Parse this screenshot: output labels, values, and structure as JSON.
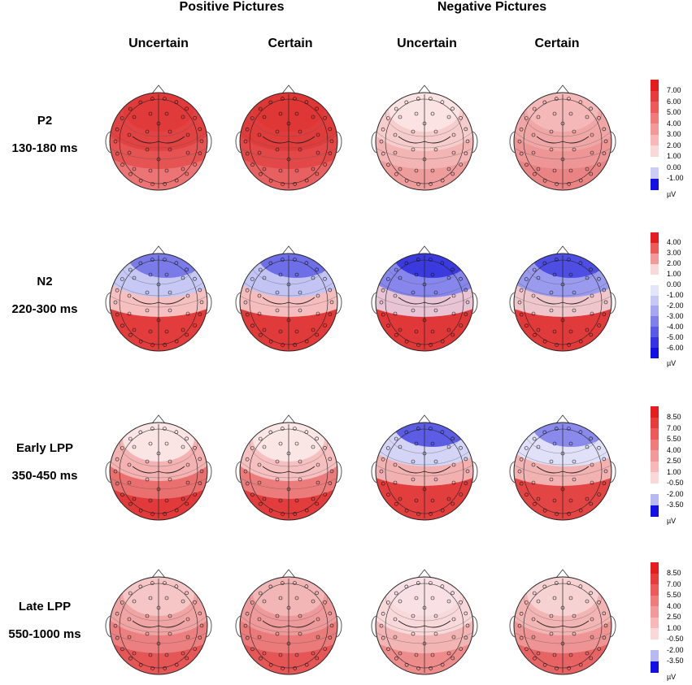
{
  "headers": {
    "groups": [
      "Positive Pictures",
      "Negative Pictures"
    ],
    "conditions": [
      "Uncertain",
      "Certain",
      "Uncertain",
      "Certain"
    ]
  },
  "rows": [
    {
      "name": "P2",
      "window": "130-180 ms",
      "maps": [
        {
          "condition": "Positive Uncertain",
          "bands": [
            "#e03a3a",
            "#e24242",
            "#e65353",
            "#ec7474"
          ],
          "front_negative": false
        },
        {
          "condition": "Positive Certain",
          "bands": [
            "#df3636",
            "#e13c3c",
            "#e34848",
            "#e86060"
          ],
          "front_negative": false
        },
        {
          "condition": "Negative Uncertain",
          "bands": [
            "#fbe3e3",
            "#f7cccc",
            "#f3b4b4",
            "#ee9c9c"
          ],
          "front_negative": false
        },
        {
          "condition": "Negative Certain",
          "bands": [
            "#f4b8b8",
            "#f1a6a6",
            "#ee9696",
            "#ea8484"
          ],
          "front_negative": false
        }
      ],
      "colorbar": {
        "ticks": [
          "7.00",
          "6.00",
          "5.00",
          "4.00",
          "3.00",
          "2.00",
          "1.00",
          "0.00",
          "-1.00"
        ],
        "colors": [
          "#e71c1c",
          "#ea3b3b",
          "#ee5a5a",
          "#f17a7a",
          "#f49999",
          "#f8b8b8",
          "#fbd8d8",
          "#ffffff",
          "#ccccf6",
          "#1111e6"
        ],
        "unit": "µV"
      }
    },
    {
      "name": "N2",
      "window": "220-300 ms",
      "maps": [
        {
          "condition": "Positive Uncertain",
          "bands": [
            "#7a7ae8",
            "#c8c8f4",
            "#f6c0c0",
            "#e23c3c"
          ],
          "front_negative": true
        },
        {
          "condition": "Positive Certain",
          "bands": [
            "#6e6ee8",
            "#c4c4f4",
            "#f5bdbd",
            "#e13a3a"
          ],
          "front_negative": true
        },
        {
          "condition": "Negative Uncertain",
          "bands": [
            "#3a3ade",
            "#8686ec",
            "#e8c4d4",
            "#e03838"
          ],
          "front_negative": true
        },
        {
          "condition": "Negative Certain",
          "bands": [
            "#4e4ee2",
            "#9a9aee",
            "#eec6cc",
            "#e03a3a"
          ],
          "front_negative": true
        }
      ],
      "colorbar": {
        "ticks": [
          "4.00",
          "3.00",
          "2.00",
          "1.00",
          "0.00",
          "-1.00",
          "-2.00",
          "-3.00",
          "-4.00",
          "-5.00",
          "-6.00"
        ],
        "colors": [
          "#e71c1c",
          "#ee5a5a",
          "#f49999",
          "#fbd8d8",
          "#ffffff",
          "#e4e4fa",
          "#c8c8f6",
          "#a6a6f1",
          "#8080ed",
          "#5a5ae9",
          "#3434e6",
          "#1111e6"
        ],
        "unit": "µV"
      }
    },
    {
      "name": "Early LPP",
      "window": "350-450 ms",
      "maps": [
        {
          "condition": "Positive Uncertain",
          "bands": [
            "#fbe4e4",
            "#f4b2b2",
            "#ea7070",
            "#e23a3a"
          ],
          "front_negative": false
        },
        {
          "condition": "Positive Certain",
          "bands": [
            "#fbe6e6",
            "#f6c0c0",
            "#ec7c7c",
            "#e23c3c"
          ],
          "front_negative": false
        },
        {
          "condition": "Negative Uncertain",
          "bands": [
            "#5c5ce4",
            "#d4d4f6",
            "#f2b0b0",
            "#e23e3e"
          ],
          "front_negative": true
        },
        {
          "condition": "Negative Certain",
          "bands": [
            "#8a8aec",
            "#e0e0f8",
            "#f2b2b2",
            "#e34444"
          ],
          "front_negative": true
        }
      ],
      "colorbar": {
        "ticks": [
          "8.50",
          "7.00",
          "5.50",
          "4.00",
          "2.50",
          "1.00",
          "-0.50",
          "-2.00",
          "-3.50"
        ],
        "colors": [
          "#e71c1c",
          "#ea3b3b",
          "#ee5a5a",
          "#f17a7a",
          "#f49999",
          "#f8b8b8",
          "#fbd8d8",
          "#ffffff",
          "#b8b8f2",
          "#1111e6"
        ],
        "unit": "µV"
      }
    },
    {
      "name": "Late LPP",
      "window": "550-1000 ms",
      "maps": [
        {
          "condition": "Positive Uncertain",
          "bands": [
            "#f6c6c6",
            "#f1a4a4",
            "#ec8080",
            "#e65656"
          ],
          "front_negative": false
        },
        {
          "condition": "Positive Certain",
          "bands": [
            "#f3b6b6",
            "#ef9a9a",
            "#eb7a7a",
            "#e65656"
          ],
          "front_negative": false
        },
        {
          "condition": "Negative Uncertain",
          "bands": [
            "#f8e0e4",
            "#f8d8d8",
            "#f3b4b4",
            "#ee8c8c"
          ],
          "front_negative": false
        },
        {
          "condition": "Negative Certain",
          "bands": [
            "#f7d2d2",
            "#f3b4b4",
            "#ee9494",
            "#e86464"
          ],
          "front_negative": false
        }
      ],
      "colorbar": {
        "ticks": [
          "8.50",
          "7.00",
          "5.50",
          "4.00",
          "2.50",
          "1.00",
          "-0.50",
          "-2.00",
          "-3.50"
        ],
        "colors": [
          "#e71c1c",
          "#ea3b3b",
          "#ee5a5a",
          "#f17a7a",
          "#f49999",
          "#f8b8b8",
          "#fbd8d8",
          "#ffffff",
          "#b8b8f2",
          "#1111e6"
        ],
        "unit": "µV"
      }
    }
  ]
}
